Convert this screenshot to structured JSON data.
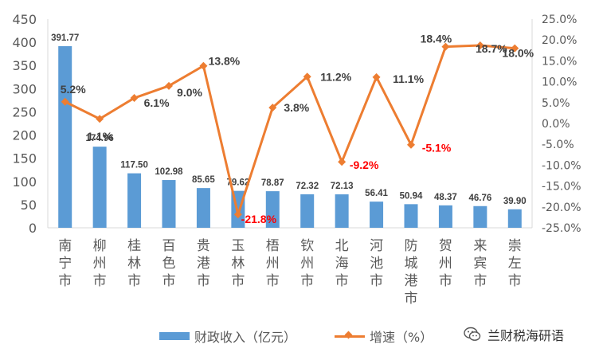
{
  "chart_data": {
    "type": "bar",
    "categories": [
      "南宁市",
      "柳州市",
      "桂林市",
      "百色市",
      "贵港市",
      "玉林市",
      "梧州市",
      "钦州市",
      "北海市",
      "河池市",
      "防城港市",
      "贺州市",
      "来宾市",
      "崇左市"
    ],
    "series": [
      {
        "name": "财政收入（亿元）",
        "type": "bar",
        "axis": "left",
        "color": "#5b9bd5",
        "values": [
          391.77,
          174.96,
          117.5,
          102.98,
          85.65,
          79.62,
          78.87,
          72.32,
          72.13,
          56.41,
          50.94,
          48.37,
          46.76,
          39.9
        ],
        "labels": [
          "391.77",
          "174.96",
          "117.50",
          "102.98",
          "85.65",
          "79.62",
          "78.87",
          "72.32",
          "72.13",
          "56.41",
          "50.94",
          "48.37",
          "46.76",
          "39.90"
        ]
      },
      {
        "name": "增速（%）",
        "type": "line",
        "axis": "right",
        "color": "#ed7d31",
        "values": [
          5.2,
          1.1,
          6.1,
          9.0,
          13.8,
          -21.8,
          3.8,
          11.2,
          -9.2,
          11.1,
          -5.1,
          18.4,
          18.7,
          18.0
        ],
        "labels": [
          "5.2%",
          "1.1%",
          "6.1%",
          "9.0%",
          "13.8%",
          "-21.8%",
          "3.8%",
          "11.2%",
          "-9.2%",
          "11.1%",
          "-5.1%",
          "18.4%",
          "18.7%",
          "18.0%"
        ]
      }
    ],
    "y_left": {
      "ylim": [
        0,
        450
      ],
      "ticks": [
        "0",
        "50",
        "100",
        "150",
        "200",
        "250",
        "300",
        "350",
        "400",
        "450"
      ]
    },
    "y_right": {
      "ylim": [
        -25,
        25
      ],
      "ticks": [
        "-25.0%",
        "-20.0%",
        "-15.0%",
        "-10.0%",
        "-5.0%",
        "0.0%",
        "5.0%",
        "10.0%",
        "15.0%",
        "20.0%",
        "25.0%"
      ]
    },
    "negative_label_color": "#ff0000",
    "label_color": "#404040",
    "grid": false,
    "legend_position": "bottom"
  },
  "watermark": {
    "text": "兰财税海研语",
    "icon": "wechat-icon"
  }
}
